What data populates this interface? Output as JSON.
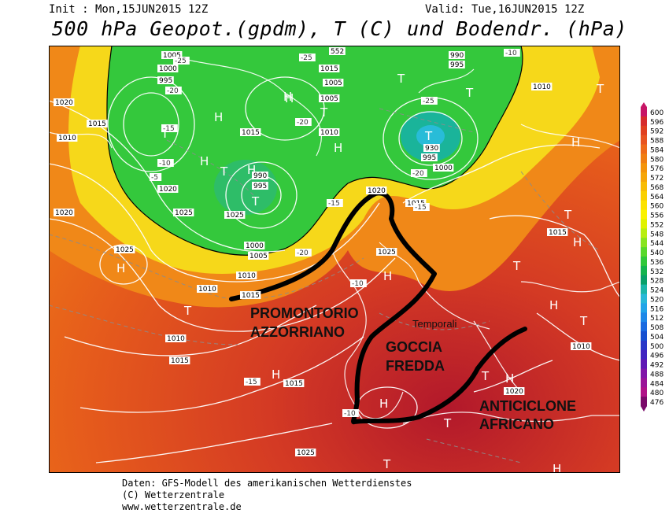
{
  "header": {
    "init": "Init : Mon,15JUN2015 12Z",
    "valid": "Valid: Tue,16JUN2015 12Z",
    "title": "500 hPa Geopot.(gpdm), T (C) und Bodendr. (hPa)"
  },
  "footer": {
    "line1": "Daten: GFS-Modell des amerikanischen Wetterdienstes",
    "line2": "(C) Wetterzentrale",
    "line3": "www.wetterzentrale.de"
  },
  "annotations": {
    "promontorio_1": "PROMONTORIO",
    "promontorio_2": "AZZORRIANO",
    "goccia_1": "GOCCIA",
    "goccia_2": "FREDDA",
    "temporali": "Temporali",
    "anticiclone_1": "ANTICICLONE",
    "anticiclone_2": "AFRICANO"
  },
  "pressure_centers": {
    "high": "H",
    "low": "T"
  },
  "isobar_labels": [
    "1005",
    "1000",
    "995",
    "1015",
    "1010",
    "1020",
    "1025",
    "990",
    "995",
    "1000",
    "1005",
    "1010",
    "1015",
    "1020",
    "1025",
    "1010",
    "1015",
    "1005",
    "1020",
    "1015",
    "1010",
    "1025",
    "1015",
    "1005",
    "1010",
    "1015",
    "930",
    "995",
    "1000",
    "990",
    "995",
    "1015",
    "552",
    "1020",
    "1025",
    "1010",
    "1015",
    "1010",
    "1025",
    "1020"
  ],
  "temp_labels": [
    "-25",
    "-20",
    "-15",
    "-10",
    "-5",
    "-25",
    "-20",
    "-15",
    "-10",
    "-20",
    "-15",
    "-10",
    "-25",
    "-20",
    "-15",
    "-10"
  ],
  "legend": {
    "ticks": [
      "600",
      "596",
      "592",
      "588",
      "584",
      "580",
      "576",
      "572",
      "568",
      "564",
      "560",
      "556",
      "552",
      "548",
      "544",
      "540",
      "536",
      "532",
      "528",
      "524",
      "520",
      "516",
      "512",
      "508",
      "504",
      "500",
      "496",
      "492",
      "488",
      "484",
      "480",
      "476"
    ],
    "colors": [
      "#c71566",
      "#d62c2c",
      "#e0401f",
      "#e85420",
      "#ee6a1a",
      "#f07e12",
      "#f4940a",
      "#f6a608",
      "#f8bc04",
      "#fad000",
      "#fce200",
      "#faf200",
      "#e0f200",
      "#b8ee10",
      "#88e420",
      "#58d82c",
      "#30c83a",
      "#14b44e",
      "#08a068",
      "#1bb6a8",
      "#28b8d8",
      "#22a4e8",
      "#1e88e8",
      "#1a6ae0",
      "#1650d0",
      "#2838c8",
      "#4024c0",
      "#6018b4",
      "#8016a8",
      "#9a1498",
      "#b01288",
      "#7a0a6a"
    ]
  },
  "colors": {
    "warm_dark": "#b2182b",
    "warm_mid": "#e04a1e",
    "warm_orange": "#f08818",
    "yellow": "#f6e41a",
    "green": "#30c83a",
    "teal": "#18b49a",
    "land": "#ffffff",
    "isobar": "#ffffff"
  }
}
